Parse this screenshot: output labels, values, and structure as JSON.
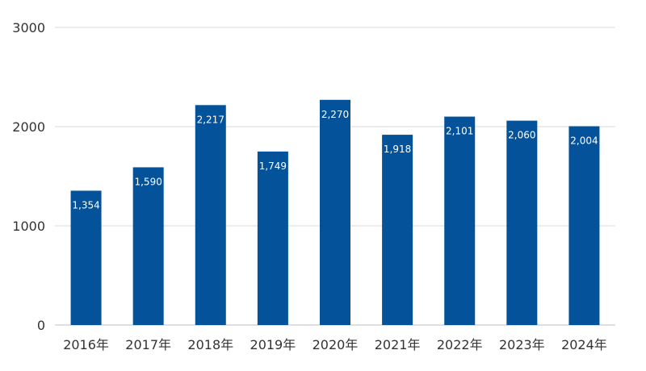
{
  "chart_data": {
    "type": "bar",
    "categories": [
      "2016年",
      "2017年",
      "2018年",
      "2019年",
      "2020年",
      "2021年",
      "2022年",
      "2023年",
      "2024年"
    ],
    "values": [
      1354,
      1590,
      2217,
      1749,
      2270,
      1918,
      2101,
      2060,
      2004
    ],
    "data_labels": [
      "1,354",
      "1,590",
      "2,217",
      "1,749",
      "2,270",
      "1,918",
      "2,101",
      "2,060",
      "2,004"
    ],
    "yticks": [
      0,
      1000,
      2000,
      3000
    ],
    "ylim": [
      0,
      3000
    ],
    "title": "",
    "xlabel": "",
    "ylabel": "",
    "grid": true,
    "colors": {
      "bar": "#04529a",
      "grid": "#d9d9d9",
      "text": "#333333",
      "label": "#ffffff"
    }
  }
}
